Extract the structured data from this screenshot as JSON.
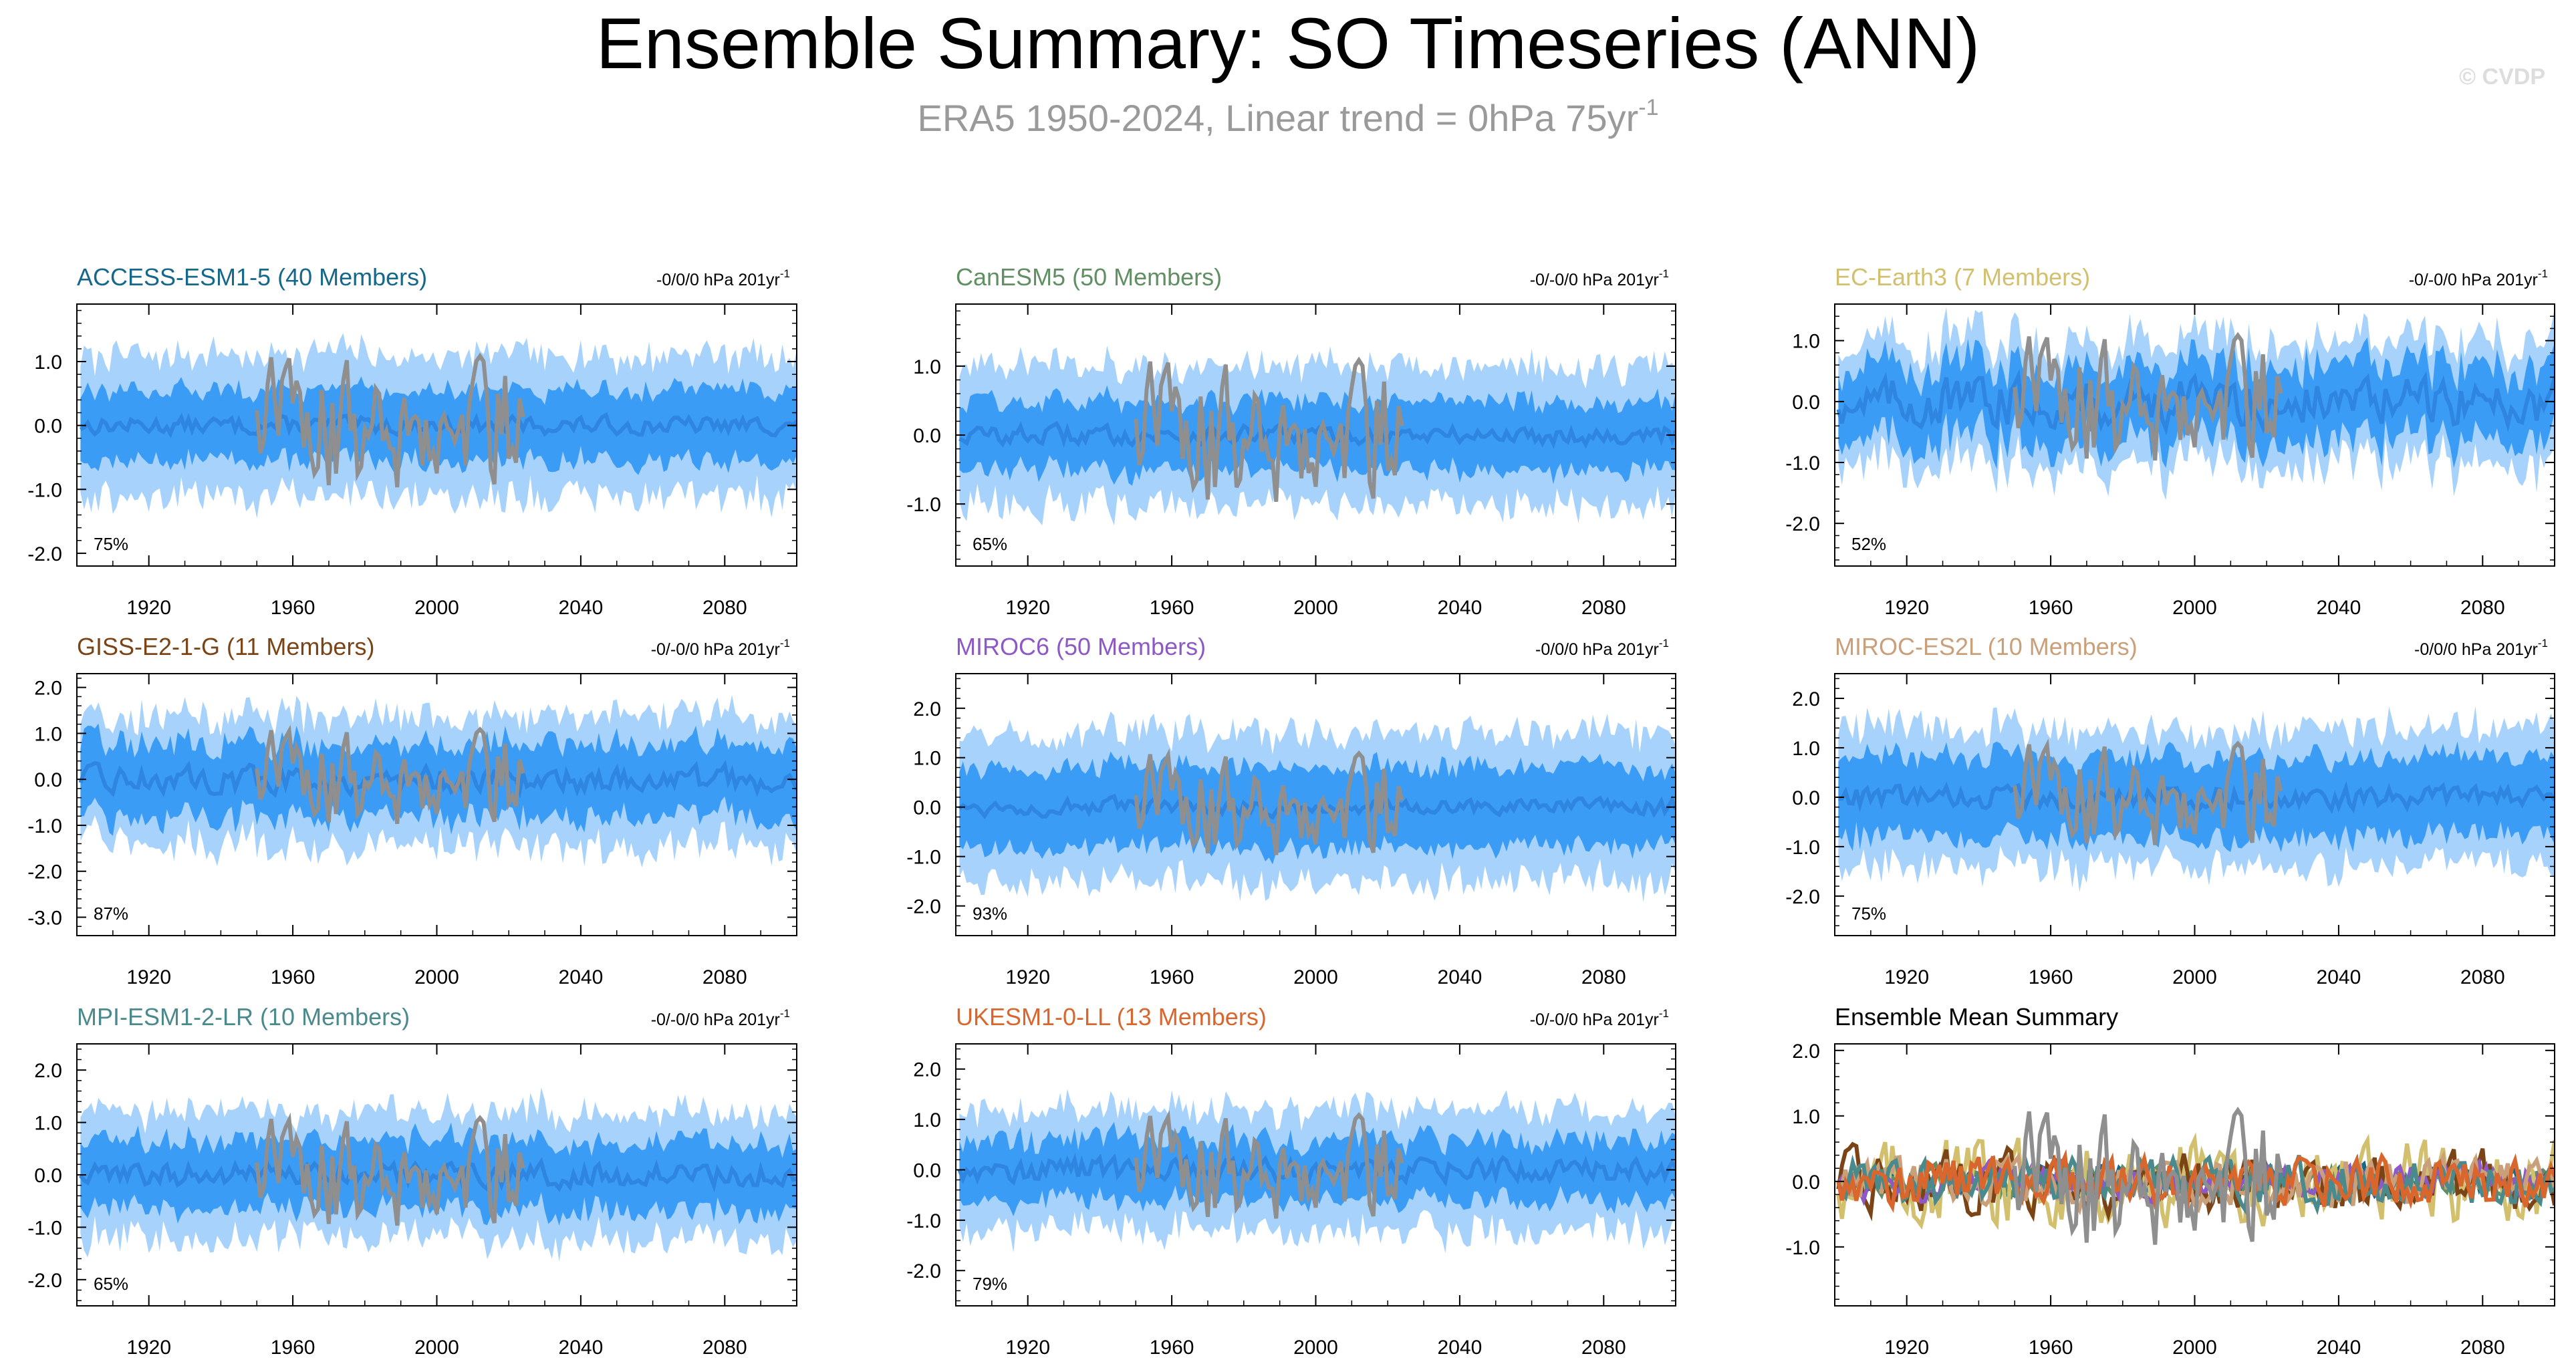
{
  "title": "Ensemble Summary: SO Timeseries (ANN)",
  "subtitle_main": "ERA5 1950-2024, Linear trend = 0hPa 75yr",
  "subtitle_sup": "-1",
  "watermark": "© CVDP",
  "colors": {
    "outer_band": "#a6d2fb",
    "inner_band": "#3b9cf5",
    "ens_mean": "#2f86e0",
    "obs": "#8f8f8f",
    "axis": "#000000",
    "title": "#000000",
    "subtitle": "#9a9a9a"
  },
  "chart_data": [
    {
      "type": "area",
      "title": "ACCESS-ESM1-5 (40 Members)",
      "title_color": "#15688a",
      "trend_label": "-0/0/0 hPa 201yr",
      "trend_sup": "-1",
      "percent_label": "75%",
      "xlim": [
        1900,
        2100
      ],
      "ylim": [
        -2.2,
        1.9
      ],
      "yticks": [
        -2,
        -1,
        0,
        1
      ],
      "ytick_labels": [
        "-2.0",
        "-1.0",
        "0.0",
        "1.0"
      ],
      "xticks": [
        1920,
        1960,
        2000,
        2040,
        2080
      ],
      "xtick_labels": [
        "1920",
        "1960",
        "2000",
        "2040",
        "2080"
      ],
      "outer_spread": 1.1,
      "inner_spread": 0.55,
      "mean_amp": 0.12,
      "obs_years": [
        1950,
        2024
      ],
      "obs_amp": 0.9
    },
    {
      "type": "area",
      "title": "CanESM5 (50 Members)",
      "title_color": "#5f8f62",
      "trend_label": "-0/-0/0 hPa 201yr",
      "trend_sup": "-1",
      "percent_label": "65%",
      "xlim": [
        1900,
        2100
      ],
      "ylim": [
        -1.9,
        1.9
      ],
      "yticks": [
        -1,
        0,
        1
      ],
      "ytick_labels": [
        "-1.0",
        "0.0",
        "1.0"
      ],
      "xticks": [
        1920,
        1960,
        2000,
        2040,
        2080
      ],
      "xtick_labels": [
        "1920",
        "1960",
        "2000",
        "2040",
        "2080"
      ],
      "outer_spread": 1.0,
      "inner_spread": 0.5,
      "mean_amp": 0.12,
      "obs_years": [
        1950,
        2024
      ],
      "obs_amp": 0.9
    },
    {
      "type": "area",
      "title": "EC-Earth3 (7 Members)",
      "title_color": "#d2c06f",
      "trend_label": "-0/-0/0 hPa 201yr",
      "trend_sup": "-1",
      "percent_label": "52%",
      "xlim": [
        1900,
        2100
      ],
      "ylim": [
        -2.7,
        1.6
      ],
      "yticks": [
        -2,
        -1,
        0,
        1
      ],
      "ytick_labels": [
        "-2.0",
        "-1.0",
        "0.0",
        "1.0"
      ],
      "xticks": [
        1920,
        1960,
        2000,
        2040,
        2080
      ],
      "xtick_labels": [
        "1920",
        "1960",
        "2000",
        "2040",
        "2080"
      ],
      "outer_spread": 1.0,
      "inner_spread": 0.6,
      "mean_amp": 0.35,
      "obs_years": [
        1950,
        2024
      ],
      "obs_amp": 0.9
    },
    {
      "type": "area",
      "title": "GISS-E2-1-G (11 Members)",
      "title_color": "#7a4416",
      "trend_label": "-0/-0/0 hPa 201yr",
      "trend_sup": "-1",
      "percent_label": "87%",
      "xlim": [
        1900,
        2100
      ],
      "ylim": [
        -3.4,
        2.3
      ],
      "yticks": [
        -3,
        -2,
        -1,
        0,
        1,
        2
      ],
      "ytick_labels": [
        "-3.0",
        "-2.0",
        "-1.0",
        "0.0",
        "1.0",
        "2.0"
      ],
      "xticks": [
        1920,
        1960,
        2000,
        2040,
        2080
      ],
      "xtick_labels": [
        "1920",
        "1960",
        "2000",
        "2040",
        "2080"
      ],
      "outer_spread": 1.4,
      "inner_spread": 0.8,
      "mean_amp": 0.25,
      "obs_years": [
        1950,
        2024
      ],
      "obs_amp": 0.9
    },
    {
      "type": "area",
      "title": "MIROC6 (50 Members)",
      "title_color": "#8d59c6",
      "trend_label": "-0/0/0 hPa 201yr",
      "trend_sup": "-1",
      "percent_label": "93%",
      "xlim": [
        1900,
        2100
      ],
      "ylim": [
        -2.6,
        2.7
      ],
      "yticks": [
        -2,
        -1,
        0,
        1,
        2
      ],
      "ytick_labels": [
        "-2.0",
        "-1.0",
        "0.0",
        "1.0",
        "2.0"
      ],
      "xticks": [
        1920,
        1960,
        2000,
        2040,
        2080
      ],
      "xtick_labels": [
        "1920",
        "1960",
        "2000",
        "2040",
        "2080"
      ],
      "outer_spread": 1.5,
      "inner_spread": 0.8,
      "mean_amp": 0.15,
      "obs_years": [
        1950,
        2024
      ],
      "obs_amp": 0.9
    },
    {
      "type": "area",
      "title": "MIROC-ES2L (10 Members)",
      "title_color": "#c9a07a",
      "trend_label": "-0/0/0 hPa 201yr",
      "trend_sup": "-1",
      "percent_label": "75%",
      "xlim": [
        1900,
        2100
      ],
      "ylim": [
        -2.8,
        2.5
      ],
      "yticks": [
        -2,
        -1,
        0,
        1,
        2
      ],
      "ytick_labels": [
        "-2.0",
        "-1.0",
        "0.0",
        "1.0",
        "2.0"
      ],
      "xticks": [
        1920,
        1960,
        2000,
        2040,
        2080
      ],
      "xtick_labels": [
        "1920",
        "1960",
        "2000",
        "2040",
        "2080"
      ],
      "outer_spread": 1.4,
      "inner_spread": 0.8,
      "mean_amp": 0.2,
      "obs_years": [
        1950,
        2024
      ],
      "obs_amp": 0.9
    },
    {
      "type": "area",
      "title": "MPI-ESM1-2-LR (10 Members)",
      "title_color": "#4a8a8c",
      "trend_label": "-0/-0/0 hPa 201yr",
      "trend_sup": "-1",
      "percent_label": "65%",
      "xlim": [
        1900,
        2100
      ],
      "ylim": [
        -2.5,
        2.5
      ],
      "yticks": [
        -2,
        -1,
        0,
        1,
        2
      ],
      "ytick_labels": [
        "-2.0",
        "-1.0",
        "0.0",
        "1.0",
        "2.0"
      ],
      "xticks": [
        1920,
        1960,
        2000,
        2040,
        2080
      ],
      "xtick_labels": [
        "1920",
        "1960",
        "2000",
        "2040",
        "2080"
      ],
      "outer_spread": 1.2,
      "inner_spread": 0.65,
      "mean_amp": 0.2,
      "obs_years": [
        1950,
        2024
      ],
      "obs_amp": 0.9
    },
    {
      "type": "area",
      "title": "UKESM1-0-LL (13 Members)",
      "title_color": "#d8662d",
      "trend_label": "-0/-0/0 hPa 201yr",
      "trend_sup": "-1",
      "percent_label": "79%",
      "xlim": [
        1900,
        2100
      ],
      "ylim": [
        -2.7,
        2.5
      ],
      "yticks": [
        -2,
        -1,
        0,
        1,
        2
      ],
      "ytick_labels": [
        "-2.0",
        "-1.0",
        "0.0",
        "1.0",
        "2.0"
      ],
      "xticks": [
        1920,
        1960,
        2000,
        2040,
        2080
      ],
      "xtick_labels": [
        "1920",
        "1960",
        "2000",
        "2040",
        "2080"
      ],
      "outer_spread": 1.2,
      "inner_spread": 0.6,
      "mean_amp": 0.2,
      "obs_years": [
        1950,
        2024
      ],
      "obs_amp": 0.9
    },
    {
      "type": "line",
      "title": "Ensemble Mean Summary",
      "title_color": "#000000",
      "trend_label": "",
      "trend_sup": "",
      "percent_label": "",
      "xlim": [
        1900,
        2100
      ],
      "ylim": [
        -1.9,
        2.1
      ],
      "yticks": [
        -1,
        0,
        1,
        2
      ],
      "ytick_labels": [
        "-1.0",
        "0.0",
        "1.0",
        "2.0"
      ],
      "xticks": [
        1920,
        1960,
        2000,
        2040,
        2080
      ],
      "xtick_labels": [
        "1920",
        "1960",
        "2000",
        "2040",
        "2080"
      ],
      "obs_years": [
        1950,
        2024
      ],
      "obs_amp": 0.9,
      "series": [
        {
          "name": "ACCESS-ESM1-5",
          "color": "#15688a",
          "amp": 0.12
        },
        {
          "name": "CanESM5",
          "color": "#5f8f62",
          "amp": 0.12
        },
        {
          "name": "EC-Earth3",
          "color": "#d2c06f",
          "amp": 0.35
        },
        {
          "name": "GISS-E2-1-G",
          "color": "#7a4416",
          "amp": 0.25
        },
        {
          "name": "MIROC6",
          "color": "#8d59c6",
          "amp": 0.15
        },
        {
          "name": "MIROC-ES2L",
          "color": "#c9a07a",
          "amp": 0.2
        },
        {
          "name": "MPI-ESM1-2-LR",
          "color": "#4a8a8c",
          "amp": 0.2
        },
        {
          "name": "UKESM1-0-LL",
          "color": "#d8662d",
          "amp": 0.2
        }
      ]
    }
  ]
}
